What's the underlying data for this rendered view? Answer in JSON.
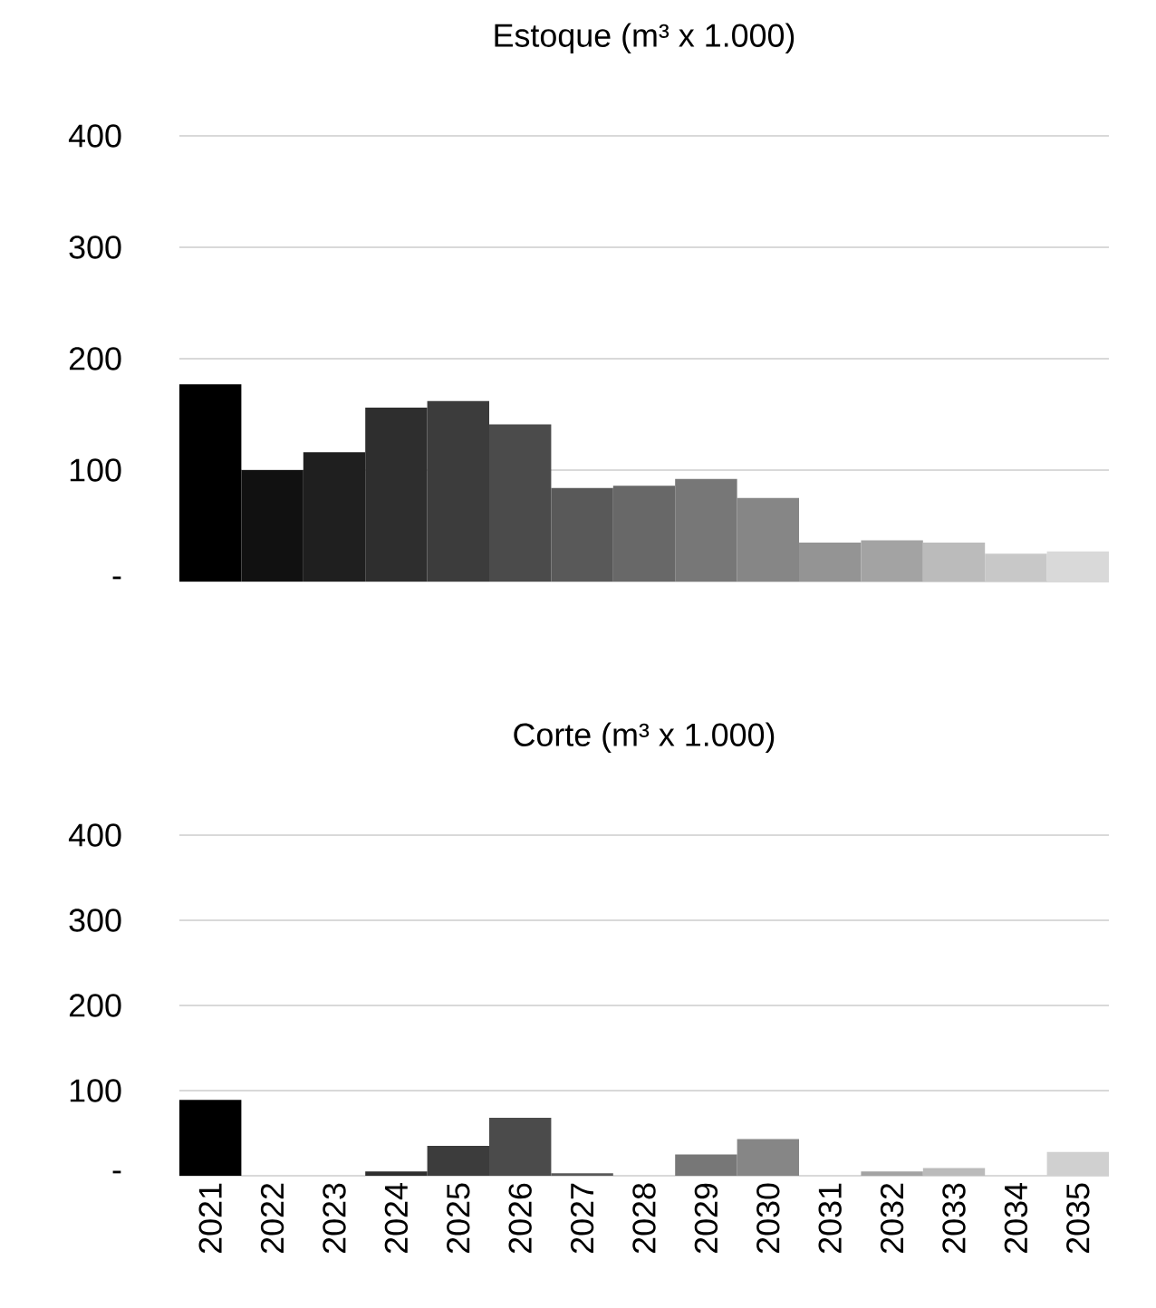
{
  "chart_data": [
    {
      "type": "bar",
      "title": "Estoque (m³ x 1.000)",
      "categories": [
        "2021",
        "2022",
        "2023",
        "2024",
        "2025",
        "2026",
        "2027",
        "2028",
        "2029",
        "2030",
        "2031",
        "2032",
        "2033",
        "2034",
        "2035"
      ],
      "values": [
        177,
        100,
        116,
        156,
        162,
        141,
        84,
        86,
        92,
        75,
        35,
        37,
        35,
        25,
        27
      ],
      "colors": [
        "#000000",
        "#111111",
        "#1f1f1f",
        "#2e2e2e",
        "#3c3c3c",
        "#4b4b4b",
        "#595959",
        "#686868",
        "#777777",
        "#868686",
        "#949494",
        "#a3a3a3",
        "#bbbbbb",
        "#c8c8c8",
        "#d9d9d9"
      ],
      "ylim": [
        0,
        400
      ],
      "yticks": [
        {
          "value": 0,
          "label": "-"
        },
        100,
        200,
        300,
        400
      ],
      "grid": "y",
      "tick_labels": "y"
    },
    {
      "type": "bar",
      "title": "Corte (m³ x 1.000)",
      "categories": [
        "2021",
        "2022",
        "2023",
        "2024",
        "2025",
        "2026",
        "2027",
        "2028",
        "2029",
        "2030",
        "2031",
        "2032",
        "2033",
        "2034",
        "2035"
      ],
      "values": [
        89,
        0,
        0,
        5,
        35,
        68,
        3,
        0,
        25,
        43,
        0,
        5,
        9,
        0,
        28
      ],
      "colors": [
        "#000000",
        "#111111",
        "#1f1f1f",
        "#2e2e2e",
        "#3c3c3c",
        "#4b4b4b",
        "#595959",
        "#686868",
        "#777777",
        "#868686",
        "#949494",
        "#a3a3a3",
        "#bbbbbb",
        "#c8c8c8",
        "#d0d0d0"
      ],
      "ylim": [
        0,
        400
      ],
      "yticks": [
        {
          "value": 0,
          "label": "-"
        },
        100,
        200,
        300,
        400
      ],
      "grid": "y"
    }
  ]
}
